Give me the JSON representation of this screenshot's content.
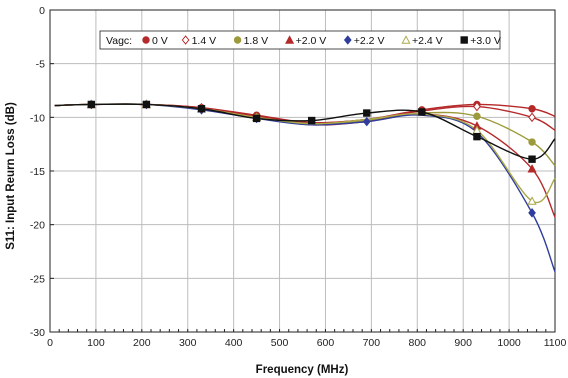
{
  "chart_data": {
    "type": "line",
    "xlabel": "Frequency (MHz)",
    "ylabel": "S11: Input Reurn Loss (dB)",
    "xlim": [
      0,
      1100
    ],
    "ylim": [
      -30,
      0
    ],
    "x_ticks": [
      0,
      100,
      200,
      300,
      400,
      500,
      600,
      700,
      800,
      900,
      1000,
      1100
    ],
    "y_ticks": [
      0,
      -5,
      -10,
      -15,
      -20,
      -25,
      -30
    ],
    "grid": true,
    "legend": {
      "title": "Vagc:",
      "placement": "top"
    },
    "series": [
      {
        "name": "0 V",
        "color": "#b5292a",
        "marker": "circle",
        "x": [
          10,
          90,
          210,
          330,
          450,
          570,
          690,
          810,
          930,
          1050,
          1100
        ],
        "y": [
          -8.9,
          -8.8,
          -8.8,
          -9.1,
          -9.8,
          -10.5,
          -10.2,
          -9.3,
          -8.8,
          -9.2,
          -9.9
        ]
      },
      {
        "name": "1.4 V",
        "color": "#b5292a",
        "marker": "diamond-open",
        "x": [
          10,
          90,
          210,
          330,
          450,
          570,
          690,
          810,
          930,
          1050,
          1100
        ],
        "y": [
          -8.9,
          -8.8,
          -8.8,
          -9.1,
          -9.9,
          -10.5,
          -10.2,
          -9.4,
          -9.0,
          -10.0,
          -11.2
        ]
      },
      {
        "name": "1.8 V",
        "color": "#9c9a3a",
        "marker": "circle",
        "x": [
          10,
          90,
          210,
          330,
          450,
          570,
          690,
          810,
          930,
          1050,
          1100
        ],
        "y": [
          -8.9,
          -8.8,
          -8.8,
          -9.2,
          -10.0,
          -10.6,
          -10.3,
          -9.6,
          -9.9,
          -12.3,
          -14.5
        ]
      },
      {
        "name": "+2.0 V",
        "color": "#b5292a",
        "marker": "triangle",
        "x": [
          10,
          90,
          210,
          330,
          450,
          570,
          690,
          810,
          930,
          1050,
          1100
        ],
        "y": [
          -8.9,
          -8.8,
          -8.8,
          -9.2,
          -10.0,
          -10.7,
          -10.4,
          -9.7,
          -10.8,
          -14.8,
          -19.3
        ]
      },
      {
        "name": "+2.2 V",
        "color": "#2f3d9c",
        "marker": "diamond",
        "x": [
          10,
          90,
          210,
          330,
          450,
          570,
          690,
          810,
          930,
          1050,
          1100
        ],
        "y": [
          -8.9,
          -8.8,
          -8.8,
          -9.3,
          -10.1,
          -10.7,
          -10.4,
          -9.8,
          -11.4,
          -18.9,
          -24.4
        ]
      },
      {
        "name": "+2.4 V",
        "color": "#a9a94a",
        "marker": "triangle-open",
        "x": [
          10,
          90,
          210,
          330,
          450,
          570,
          690,
          810,
          930,
          1050,
          1100
        ],
        "y": [
          -8.9,
          -8.8,
          -8.8,
          -9.2,
          -10.0,
          -10.6,
          -10.2,
          -9.7,
          -11.2,
          -17.8,
          -15.7
        ]
      },
      {
        "name": "+3.0 V",
        "color": "#111111",
        "marker": "square",
        "x": [
          10,
          90,
          210,
          330,
          450,
          570,
          690,
          810,
          930,
          1050,
          1100
        ],
        "y": [
          -8.9,
          -8.8,
          -8.8,
          -9.2,
          -10.1,
          -10.3,
          -9.6,
          -9.5,
          -11.8,
          -13.9,
          -12.0
        ]
      }
    ]
  }
}
